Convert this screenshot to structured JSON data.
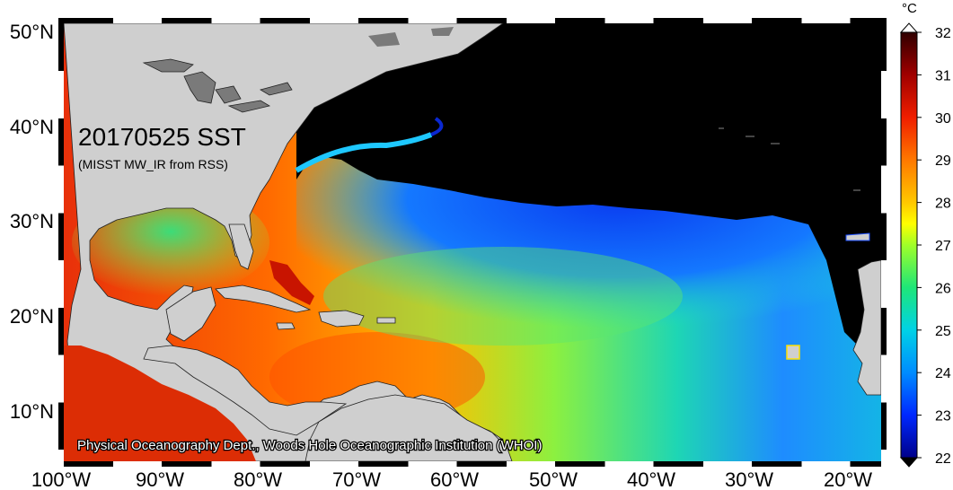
{
  "title": "20170525 SST",
  "subtitle": "(MISST MW_IR from RSS)",
  "credit": "Physical Oceanography Dept., Woods Hole Oceanographic Institution (WHOI)",
  "lat_labels": [
    "50°N",
    "40°N",
    "30°N",
    "20°N",
    "10°N"
  ],
  "lon_labels": [
    "100°W",
    "90°W",
    "80°W",
    "70°W",
    "60°W",
    "50°W",
    "40°W",
    "30°W",
    "20°W"
  ],
  "colorbar": {
    "unit": "°C",
    "min": 22,
    "max": 32,
    "tick_labels": [
      "32",
      "31",
      "30",
      "29",
      "28",
      "27",
      "26",
      "25",
      "24",
      "23",
      "22"
    ]
  },
  "colors": {
    "land": "#cfcfcf",
    "lake": "#7a7a7a",
    "no_data": "#000000"
  }
}
